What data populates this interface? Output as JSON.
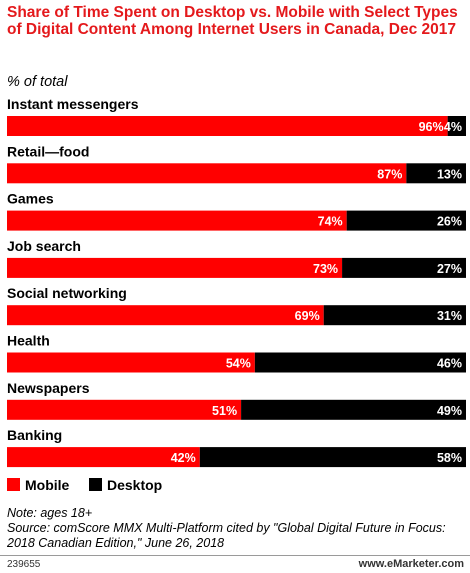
{
  "header": {
    "title": "Share of Time Spent on Desktop vs. Mobile with Select Types of Digital Content Among Internet Users in Canada, Dec 2017",
    "subtitle": "% of total"
  },
  "chart_data": {
    "type": "bar",
    "orientation": "horizontal",
    "stacked": true,
    "categories": [
      "Instant messengers",
      "Retail—food",
      "Games",
      "Job search",
      "Social networking",
      "Health",
      "Newspapers",
      "Banking"
    ],
    "series": [
      {
        "name": "Mobile",
        "values": [
          96,
          87,
          74,
          73,
          69,
          54,
          51,
          42
        ],
        "labels": [
          "96%",
          "87%",
          "74%",
          "73%",
          "69%",
          "54%",
          "51%",
          "42%"
        ]
      },
      {
        "name": "Desktop",
        "values": [
          4,
          13,
          26,
          27,
          31,
          46,
          49,
          58
        ],
        "labels": [
          "4%",
          "13%",
          "26%",
          "27%",
          "31%",
          "46%",
          "49%",
          "58%"
        ]
      }
    ],
    "xlim": [
      0,
      100
    ],
    "legend_position": "bottom-left",
    "grid": false
  },
  "colors": {
    "mobile": "#ff0000",
    "desktop": "#000000",
    "title": "#e4191c"
  },
  "legend": {
    "mobile": "Mobile",
    "desktop": "Desktop"
  },
  "notes": {
    "note": "Note: ages 18+",
    "source": "Source: comScore MMX Multi-Platform cited by \"Global Digital Future in Focus: 2018 Canadian Edition,\" June 26, 2018"
  },
  "footer": {
    "id": "239655",
    "brand": "www.eMarketer.com"
  }
}
